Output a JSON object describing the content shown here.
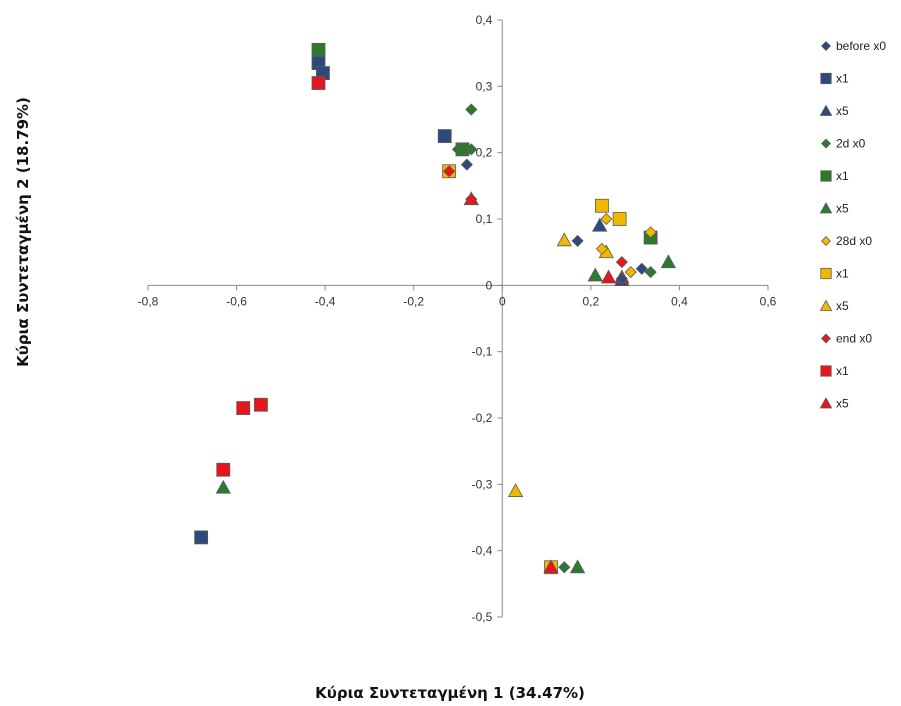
{
  "chart_data": {
    "type": "scatter",
    "xlabel": "Κύρια Συντεταγμένη 1 (34.47%)",
    "ylabel": "Κύρια Συντεταγμένη 2 (18.79%)",
    "xlim": [
      -0.8,
      0.6
    ],
    "ylim": [
      -0.5,
      0.4
    ],
    "x_ticks": [
      "-0,8",
      "-0,6",
      "-0,4",
      "-0,2",
      "0",
      "0,2",
      "0,4",
      "0,6"
    ],
    "y_ticks": [
      "0,4",
      "0,3",
      "0,2",
      "0,1",
      "0",
      "-0,1",
      "-0,2",
      "-0,3",
      "-0,4",
      "-0,5"
    ],
    "grid": false,
    "legend_position": "right",
    "series": [
      {
        "name": "before x0",
        "marker": "diamond",
        "color": "#2e4a7d",
        "points": [
          [
            -0.08,
            0.182
          ],
          [
            0.17,
            0.067
          ],
          [
            0.315,
            0.025
          ],
          [
            0.27,
            0.01
          ]
        ]
      },
      {
        "name": "x1",
        "marker": "square",
        "color": "#2e4a7d",
        "points": [
          [
            -0.415,
            0.335
          ],
          [
            -0.405,
            0.32
          ],
          [
            -0.13,
            0.225
          ],
          [
            -0.68,
            -0.38
          ]
        ]
      },
      {
        "name": "x5",
        "marker": "triangle",
        "color": "#2e4a7d",
        "points": [
          [
            0.22,
            0.09
          ],
          [
            0.27,
            0.008
          ]
        ]
      },
      {
        "name": "2d x0",
        "marker": "diamond",
        "color": "#2d7a2d",
        "points": [
          [
            -0.07,
            0.265
          ],
          [
            -0.1,
            0.205
          ],
          [
            -0.085,
            0.205
          ],
          [
            -0.07,
            0.205
          ],
          [
            0.335,
            0.02
          ],
          [
            0.14,
            -0.425
          ]
        ]
      },
      {
        "name": "x1",
        "marker": "square",
        "color": "#2d7a2d",
        "points": [
          [
            -0.415,
            0.355
          ],
          [
            0.335,
            0.072
          ],
          [
            -0.09,
            0.205
          ]
        ]
      },
      {
        "name": "x5",
        "marker": "triangle",
        "color": "#2d7a2d",
        "points": [
          [
            0.375,
            0.035
          ],
          [
            0.21,
            0.015
          ],
          [
            -0.63,
            -0.305
          ],
          [
            0.17,
            -0.425
          ]
        ]
      },
      {
        "name": "28d x0",
        "marker": "diamond",
        "color": "#f2b800",
        "points": [
          [
            0.335,
            0.08
          ],
          [
            0.235,
            0.1
          ],
          [
            0.225,
            0.055
          ],
          [
            0.29,
            0.02
          ]
        ]
      },
      {
        "name": "x1",
        "marker": "square",
        "color": "#f2b800",
        "points": [
          [
            0.225,
            0.12
          ],
          [
            0.265,
            0.1
          ],
          [
            -0.12,
            0.172
          ],
          [
            0.11,
            -0.425
          ]
        ]
      },
      {
        "name": "x5",
        "marker": "triangle",
        "color": "#f2b800",
        "points": [
          [
            0.14,
            0.068
          ],
          [
            0.235,
            0.05
          ],
          [
            0.03,
            -0.31
          ]
        ]
      },
      {
        "name": "end x0",
        "marker": "diamond",
        "color": "#e8141e",
        "points": [
          [
            0.27,
            0.035
          ],
          [
            -0.12,
            0.172
          ],
          [
            -0.07,
            0.13
          ]
        ]
      },
      {
        "name": "x1",
        "marker": "square",
        "color": "#e8141e",
        "points": [
          [
            -0.415,
            0.305
          ],
          [
            -0.585,
            -0.185
          ],
          [
            -0.545,
            -0.18
          ],
          [
            -0.63,
            -0.278
          ]
        ]
      },
      {
        "name": "x5",
        "marker": "triangle",
        "color": "#e8141e",
        "points": [
          [
            -0.07,
            0.13
          ],
          [
            0.24,
            0.012
          ],
          [
            0.27,
            0.012
          ],
          [
            0.11,
            -0.425
          ]
        ]
      }
    ]
  }
}
